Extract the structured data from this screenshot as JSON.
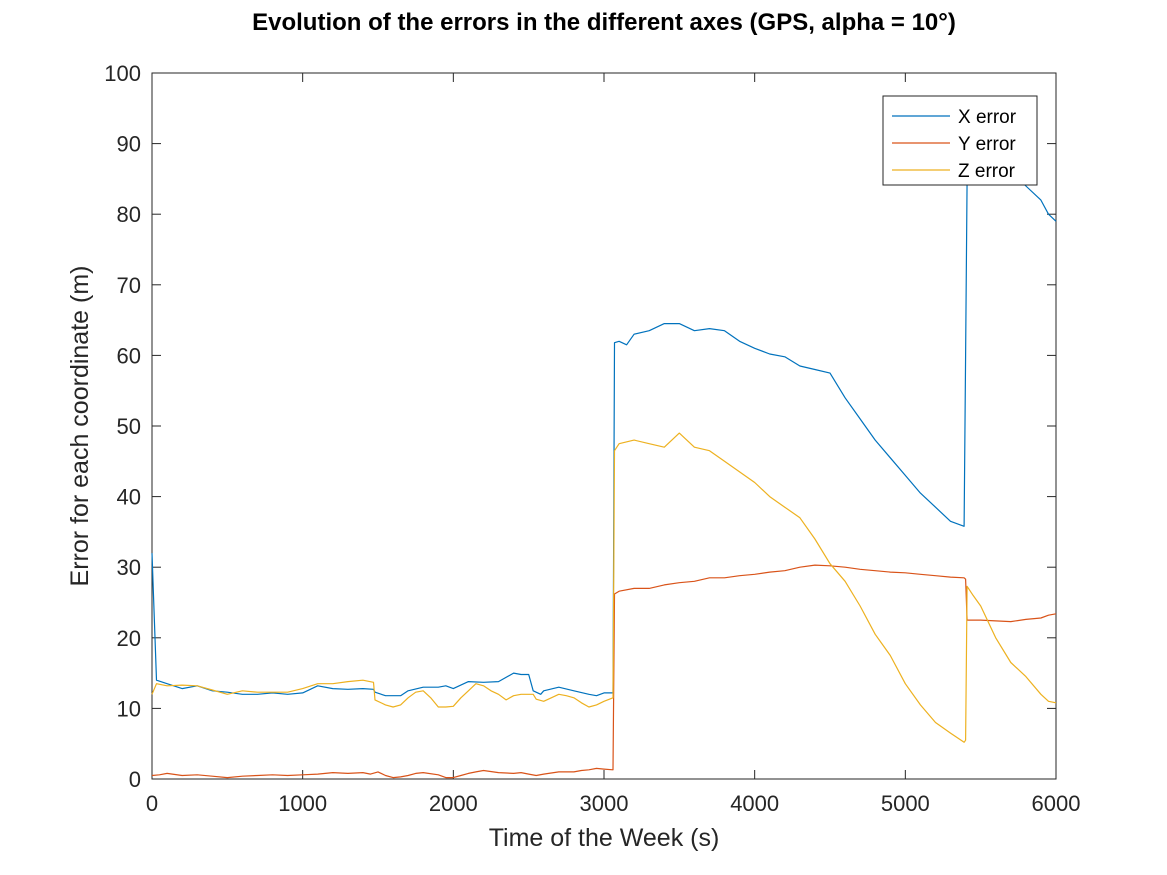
{
  "chart_data": {
    "type": "line",
    "title": "Evolution of the errors in the different axes (GPS, alpha = 10°)",
    "xlabel": "Time of the Week (s)",
    "ylabel": "Error for each coordinate (m)",
    "xlim": [
      0,
      6000
    ],
    "ylim": [
      0,
      100
    ],
    "xticks": [
      0,
      1000,
      2000,
      3000,
      4000,
      5000,
      6000
    ],
    "yticks": [
      0,
      10,
      20,
      30,
      40,
      50,
      60,
      70,
      80,
      90,
      100
    ],
    "xtick_labels": [
      "0",
      "1000",
      "2000",
      "3000",
      "4000",
      "5000",
      "6000"
    ],
    "ytick_labels": [
      "0",
      "10",
      "20",
      "30",
      "40",
      "50",
      "60",
      "70",
      "80",
      "90",
      "100"
    ],
    "grid": false,
    "legend_position": "top-right",
    "series": [
      {
        "name": "X error",
        "color": "#0072BD",
        "x": [
          0,
          30,
          100,
          200,
          300,
          400,
          500,
          600,
          700,
          800,
          900,
          1000,
          1100,
          1200,
          1300,
          1400,
          1470,
          1480,
          1550,
          1650,
          1700,
          1800,
          1900,
          1950,
          2000,
          2100,
          2200,
          2300,
          2400,
          2450,
          2500,
          2530,
          2580,
          2600,
          2700,
          2800,
          2900,
          2950,
          3000,
          3060,
          3070,
          3100,
          3150,
          3200,
          3300,
          3400,
          3500,
          3600,
          3700,
          3800,
          3900,
          4000,
          4100,
          4200,
          4300,
          4400,
          4500,
          4600,
          4700,
          4800,
          4900,
          5000,
          5100,
          5200,
          5300,
          5390,
          5400,
          5410,
          5450,
          5500,
          5600,
          5700,
          5800,
          5900,
          5950,
          6000
        ],
        "y": [
          32,
          14,
          13.5,
          12.8,
          13.2,
          12.5,
          12.3,
          12,
          12,
          12.2,
          12,
          12.2,
          13.2,
          12.8,
          12.7,
          12.8,
          12.7,
          12.3,
          11.8,
          11.8,
          12.5,
          13,
          13,
          13.2,
          12.8,
          13.8,
          13.7,
          13.8,
          15,
          14.8,
          14.8,
          12.5,
          12,
          12.5,
          13,
          12.5,
          12,
          11.8,
          12.2,
          12.2,
          61.8,
          62,
          61.5,
          63,
          63.5,
          64.5,
          64.5,
          63.5,
          63.8,
          63.5,
          62,
          61,
          60.2,
          59.8,
          58.5,
          58,
          57.5,
          54,
          51,
          48,
          45.5,
          43,
          40.5,
          38.5,
          36.5,
          35.8,
          60,
          85,
          88,
          89,
          88,
          86,
          84,
          82,
          80,
          79
        ]
      },
      {
        "name": "Y error",
        "color": "#D95319",
        "x": [
          0,
          50,
          100,
          200,
          300,
          400,
          500,
          600,
          700,
          800,
          900,
          1000,
          1100,
          1200,
          1300,
          1400,
          1450,
          1500,
          1550,
          1600,
          1650,
          1700,
          1750,
          1800,
          1900,
          1950,
          2000,
          2050,
          2100,
          2150,
          2200,
          2300,
          2400,
          2450,
          2500,
          2550,
          2600,
          2700,
          2800,
          2850,
          2900,
          2950,
          3000,
          3060,
          3070,
          3100,
          3200,
          3300,
          3400,
          3500,
          3600,
          3700,
          3800,
          3900,
          4000,
          4100,
          4200,
          4300,
          4400,
          4500,
          4600,
          4700,
          4800,
          4900,
          5000,
          5100,
          5200,
          5300,
          5390,
          5400,
          5410,
          5500,
          5600,
          5700,
          5800,
          5900,
          5950,
          6000
        ],
        "y": [
          0.5,
          0.6,
          0.8,
          0.5,
          0.6,
          0.4,
          0.2,
          0.4,
          0.5,
          0.6,
          0.5,
          0.6,
          0.7,
          0.9,
          0.8,
          0.9,
          0.7,
          1.0,
          0.5,
          0.2,
          0.3,
          0.5,
          0.8,
          0.9,
          0.6,
          0.2,
          0.2,
          0.5,
          0.8,
          1.0,
          1.2,
          0.9,
          0.8,
          0.9,
          0.7,
          0.5,
          0.7,
          1.0,
          1.0,
          1.2,
          1.3,
          1.5,
          1.4,
          1.3,
          26.2,
          26.6,
          27,
          27,
          27.5,
          27.8,
          28,
          28.5,
          28.5,
          28.8,
          29,
          29.3,
          29.5,
          30,
          30.3,
          30.2,
          30,
          29.7,
          29.5,
          29.3,
          29.2,
          29,
          28.8,
          28.6,
          28.5,
          28.3,
          22.5,
          22.5,
          22.4,
          22.3,
          22.6,
          22.8,
          23.2,
          23.4
        ]
      },
      {
        "name": "Z error",
        "color": "#EDB120",
        "x": [
          0,
          30,
          100,
          200,
          300,
          400,
          500,
          600,
          700,
          800,
          900,
          1000,
          1100,
          1200,
          1300,
          1400,
          1470,
          1480,
          1550,
          1600,
          1650,
          1700,
          1750,
          1800,
          1850,
          1900,
          1950,
          2000,
          2050,
          2100,
          2150,
          2200,
          2250,
          2300,
          2350,
          2400,
          2450,
          2500,
          2530,
          2550,
          2600,
          2650,
          2700,
          2750,
          2800,
          2850,
          2900,
          2950,
          3000,
          3060,
          3070,
          3100,
          3200,
          3300,
          3400,
          3500,
          3600,
          3700,
          3800,
          3900,
          4000,
          4100,
          4200,
          4300,
          4400,
          4500,
          4600,
          4700,
          4800,
          4900,
          5000,
          5100,
          5200,
          5300,
          5390,
          5400,
          5410,
          5450,
          5500,
          5600,
          5700,
          5800,
          5900,
          5950,
          6000
        ],
        "y": [
          12,
          13.5,
          13.2,
          13.3,
          13.2,
          12.6,
          12,
          12.5,
          12.3,
          12.3,
          12.3,
          12.8,
          13.5,
          13.5,
          13.8,
          14,
          13.7,
          11.2,
          10.5,
          10.2,
          10.5,
          11.5,
          12.3,
          12.5,
          11.5,
          10.2,
          10.2,
          10.3,
          11.5,
          12.5,
          13.5,
          13.2,
          12.5,
          12,
          11.2,
          11.8,
          12,
          12,
          12,
          11.3,
          11,
          11.5,
          12,
          11.8,
          11.5,
          10.8,
          10.2,
          10.5,
          11,
          11.5,
          46.5,
          47.5,
          48,
          47.5,
          47,
          49,
          47,
          46.5,
          45,
          43.5,
          42,
          40,
          38.5,
          37,
          34,
          30.5,
          28,
          24.5,
          20.5,
          17.5,
          13.5,
          10.5,
          8,
          6.5,
          5.2,
          5.5,
          27.3,
          26,
          24.5,
          20,
          16.5,
          14.5,
          12,
          11,
          10.8
        ]
      }
    ]
  }
}
